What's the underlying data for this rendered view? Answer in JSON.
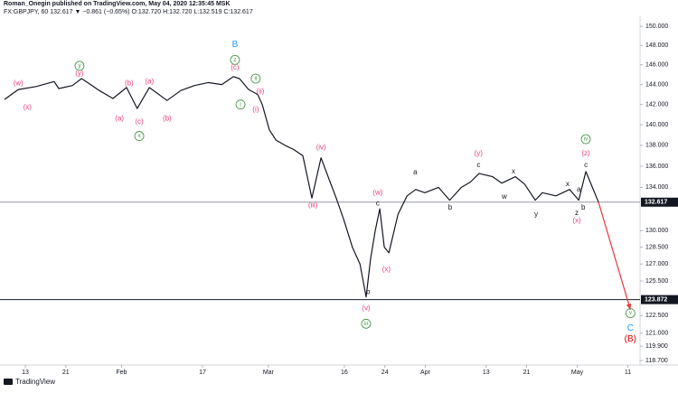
{
  "chart_data": {
    "type": "line",
    "title": "Roman_Onegin published on TradingView.com, May 04, 2020 12:35:45 MSK",
    "subtitle": "FX:GBPJPY, 60  132.617  ▼ −0.861 (−0.65%)  O:132.720 H:132.720 L:132.519 C:132.617",
    "source": "TradingView",
    "log_scale": true,
    "grid": false,
    "xlim": [
      8,
      134.4
    ],
    "ylim": [
      118.33,
      151.05
    ],
    "xticks": [
      {
        "value": 13,
        "label": "13"
      },
      {
        "value": 21,
        "label": "21"
      },
      {
        "value": 32,
        "label": "Feb"
      },
      {
        "value": 48,
        "label": "17"
      },
      {
        "value": 61,
        "label": "Mar"
      },
      {
        "value": 76,
        "label": "16"
      },
      {
        "value": 84,
        "label": "24"
      },
      {
        "value": 92,
        "label": "Apr"
      },
      {
        "value": 104,
        "label": "13"
      },
      {
        "value": 112,
        "label": "21"
      },
      {
        "value": 122,
        "label": "May"
      },
      {
        "value": 132,
        "label": "11"
      }
    ],
    "yticks": [
      {
        "value": 150,
        "label": "150.000"
      },
      {
        "value": 148,
        "label": "148.000"
      },
      {
        "value": 146,
        "label": "146.000"
      },
      {
        "value": 144,
        "label": "144.000"
      },
      {
        "value": 142,
        "label": "142.000"
      },
      {
        "value": 140,
        "label": "140.000"
      },
      {
        "value": 138,
        "label": "138.000"
      },
      {
        "value": 136,
        "label": "136.000"
      },
      {
        "value": 134,
        "label": "134.000"
      },
      {
        "value": 130,
        "label": "130.000"
      },
      {
        "value": 128.5,
        "label": "128.500"
      },
      {
        "value": 127,
        "label": "127.000"
      },
      {
        "value": 125.5,
        "label": "125.500"
      },
      {
        "value": 122.5,
        "label": "122.500"
      },
      {
        "value": 121,
        "label": "121.000"
      },
      {
        "value": 119.9,
        "label": "119.900"
      },
      {
        "value": 118.7,
        "label": "118.700"
      }
    ],
    "series": [
      {
        "name": "FX:GBPJPY",
        "color": "#131722",
        "x": [
          8.9,
          11.6,
          15.1,
          18.7,
          19.6,
          22.3,
          24.1,
          25.9,
          27.6,
          30.3,
          33,
          35.1,
          37.5,
          41,
          43.7,
          46.4,
          49.1,
          51.8,
          54.1,
          55.3,
          57.1,
          58.9,
          59.8,
          61.2,
          62.5,
          64.3,
          66,
          67.8,
          69.6,
          71.4,
          73.2,
          74.4,
          75.9,
          77.6,
          79.1,
          80.3,
          81.2,
          82.1,
          83,
          83.9,
          84.8,
          86.6,
          88.4,
          90.1,
          91.9,
          94.6,
          96.8,
          99.1,
          100.9,
          102.6,
          105.3,
          107.1,
          109.8,
          111.6,
          113.7,
          115.1,
          117.8,
          120.5,
          122.3,
          123.7,
          125,
          126.2
        ],
        "values": [
          142.5,
          143.5,
          143.8,
          144.3,
          143.6,
          143.9,
          144.6,
          144.0,
          143.4,
          142.6,
          143.7,
          141.6,
          143.7,
          142.4,
          143.4,
          143.9,
          144.2,
          144.0,
          144.8,
          144.6,
          143.5,
          143.0,
          142.0,
          139.5,
          138.5,
          138.0,
          137.6,
          137.0,
          133.0,
          136.8,
          134.5,
          133.0,
          131.0,
          128.5,
          127.0,
          124.1,
          127.5,
          130.0,
          132.0,
          128.5,
          128.0,
          131.5,
          133.2,
          133.8,
          133.5,
          134.0,
          132.8,
          134.0,
          134.5,
          135.3,
          135.0,
          134.4,
          135.0,
          134.3,
          132.8,
          133.5,
          133.2,
          133.8,
          132.8,
          135.5,
          134.0,
          132.617
        ]
      }
    ],
    "hlines": [
      {
        "value": 132.617,
        "color": "#9598a1"
      },
      {
        "value": 123.872,
        "color": "#131722"
      }
    ],
    "arrow": {
      "x": [
        126.2,
        132.5
      ],
      "y": [
        132.617,
        123.0
      ],
      "color": "#e53935"
    },
    "annotations": [
      {
        "text": "(w)",
        "x": 11.6,
        "y": 144.1,
        "color": "#ec407a"
      },
      {
        "text": "(x)",
        "x": 13.4,
        "y": 141.7,
        "color": "#ec407a"
      },
      {
        "text": "y",
        "x": 23.7,
        "y": 145.9,
        "color": "#388e3c",
        "circled": true
      },
      {
        "text": "(y)",
        "x": 23.7,
        "y": 145.1,
        "color": "#ec407a"
      },
      {
        "text": "(b)",
        "x": 33.5,
        "y": 144.1,
        "color": "#ec407a"
      },
      {
        "text": "(a)",
        "x": 37.5,
        "y": 144.3,
        "color": "#ec407a"
      },
      {
        "text": "(a)",
        "x": 31.6,
        "y": 140.6,
        "color": "#ec407a"
      },
      {
        "text": "(c)",
        "x": 35.5,
        "y": 140.3,
        "color": "#ec407a"
      },
      {
        "text": "x",
        "x": 35.5,
        "y": 138.9,
        "color": "#388e3c",
        "circled": true
      },
      {
        "text": "(b)",
        "x": 41,
        "y": 140.6,
        "color": "#ec407a"
      },
      {
        "text": "B",
        "x": 54.4,
        "y": 148.1,
        "color": "#2196f3"
      },
      {
        "text": "z",
        "x": 54.4,
        "y": 146.5,
        "color": "#388e3c",
        "circled": true
      },
      {
        "text": "(c)",
        "x": 54.4,
        "y": 145.7,
        "color": "#ec407a"
      },
      {
        "text": "ii",
        "x": 58.5,
        "y": 144.6,
        "color": "#388e3c",
        "circled": true
      },
      {
        "text": "i",
        "x": 55.5,
        "y": 142,
        "color": "#388e3c",
        "circled": true
      },
      {
        "text": "(ii)",
        "x": 59.4,
        "y": 143.3,
        "color": "#ec407a"
      },
      {
        "text": "(i)",
        "x": 58.5,
        "y": 141.5,
        "color": "#ec407a"
      },
      {
        "text": "(iv)",
        "x": 71.4,
        "y": 137.8,
        "color": "#ec407a"
      },
      {
        "text": "(iii)",
        "x": 69.8,
        "y": 132.3,
        "color": "#ec407a"
      },
      {
        "text": "(w)",
        "x": 82.6,
        "y": 133.5,
        "color": "#ec407a"
      },
      {
        "text": "c",
        "x": 82.6,
        "y": 132.5,
        "color": "#131722"
      },
      {
        "text": "(x)",
        "x": 84.3,
        "y": 126.5,
        "color": "#ec407a"
      },
      {
        "text": "b",
        "x": 80.7,
        "y": 124.5,
        "color": "#131722"
      },
      {
        "text": "(v)",
        "x": 80.3,
        "y": 123.1,
        "color": "#ec407a"
      },
      {
        "text": "iii",
        "x": 80.3,
        "y": 121.8,
        "color": "#388e3c",
        "circled": true
      },
      {
        "text": "a",
        "x": 90,
        "y": 135.4,
        "color": "#131722"
      },
      {
        "text": "b",
        "x": 96.9,
        "y": 132.1,
        "color": "#131722"
      },
      {
        "text": "(y)",
        "x": 102.5,
        "y": 137.2,
        "color": "#ec407a"
      },
      {
        "text": "c",
        "x": 102.5,
        "y": 136.1,
        "color": "#131722"
      },
      {
        "text": "x",
        "x": 109.4,
        "y": 135.5,
        "color": "#131722"
      },
      {
        "text": "w",
        "x": 107.6,
        "y": 133.1,
        "color": "#131722"
      },
      {
        "text": "y",
        "x": 113.9,
        "y": 131.5,
        "color": "#131722"
      },
      {
        "text": "x",
        "x": 120.1,
        "y": 134.3,
        "color": "#131722"
      },
      {
        "text": "a",
        "x": 122.3,
        "y": 133.8,
        "color": "#131722"
      },
      {
        "text": "z",
        "x": 121.9,
        "y": 131.6,
        "color": "#131722"
      },
      {
        "text": "b",
        "x": 123.2,
        "y": 132.1,
        "color": "#131722"
      },
      {
        "text": "(x)",
        "x": 121.9,
        "y": 130.9,
        "color": "#ec407a"
      },
      {
        "text": "iv",
        "x": 123.7,
        "y": 138.6,
        "color": "#388e3c",
        "circled": true
      },
      {
        "text": "(z)",
        "x": 123.7,
        "y": 137.2,
        "color": "#ec407a"
      },
      {
        "text": "c",
        "x": 123.7,
        "y": 136.1,
        "color": "#131722"
      },
      {
        "text": "v",
        "x": 132.5,
        "y": 122.7,
        "color": "#388e3c",
        "circled": true
      },
      {
        "text": "C",
        "x": 132.5,
        "y": 121.4,
        "color": "#2196f3"
      },
      {
        "text": "(B)",
        "x": 132.5,
        "y": 120.5,
        "color": "#d50000"
      }
    ]
  }
}
